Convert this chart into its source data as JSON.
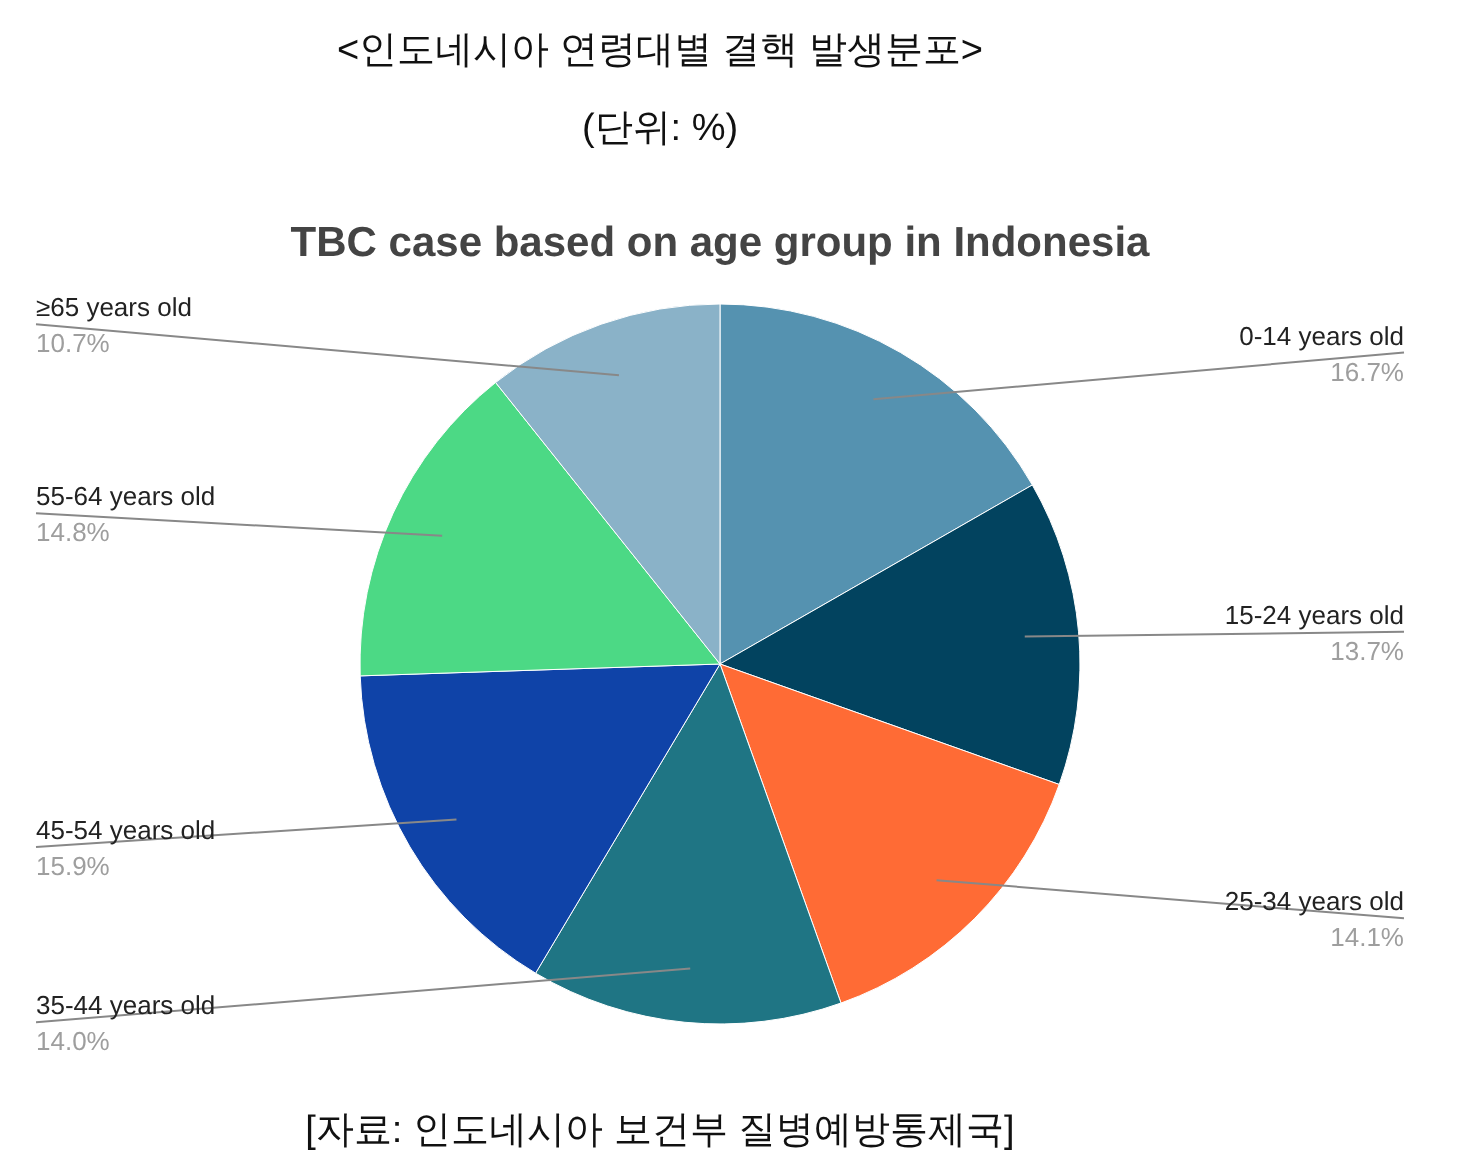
{
  "chart_data": {
    "type": "pie",
    "title": "<인도네시아 연령대별 결핵 발생분포>",
    "subtitle": "(단위: %)",
    "annotations": [
      "TBC case based on age group in Indonesia",
      "[자료: 인도네시아 보건부 질병예방통제국]"
    ],
    "categories": [
      "0-14 years old",
      "15-24 years old",
      "25-34 years old",
      "35-44 years old",
      "45-54 years old",
      "55-64 years old",
      "≥65 years old"
    ],
    "values": [
      16.7,
      13.7,
      14.1,
      14.0,
      15.9,
      14.8,
      10.7
    ],
    "value_labels": [
      "16.7%",
      "13.7%",
      "14.1%",
      "14.0%",
      "15.9%",
      "14.8%",
      "10.7%"
    ],
    "colors": [
      "#5592b0",
      "#02435f",
      "#ff6b35",
      "#1f7584",
      "#0f43a8",
      "#4cd985",
      "#8ab2c8"
    ]
  }
}
